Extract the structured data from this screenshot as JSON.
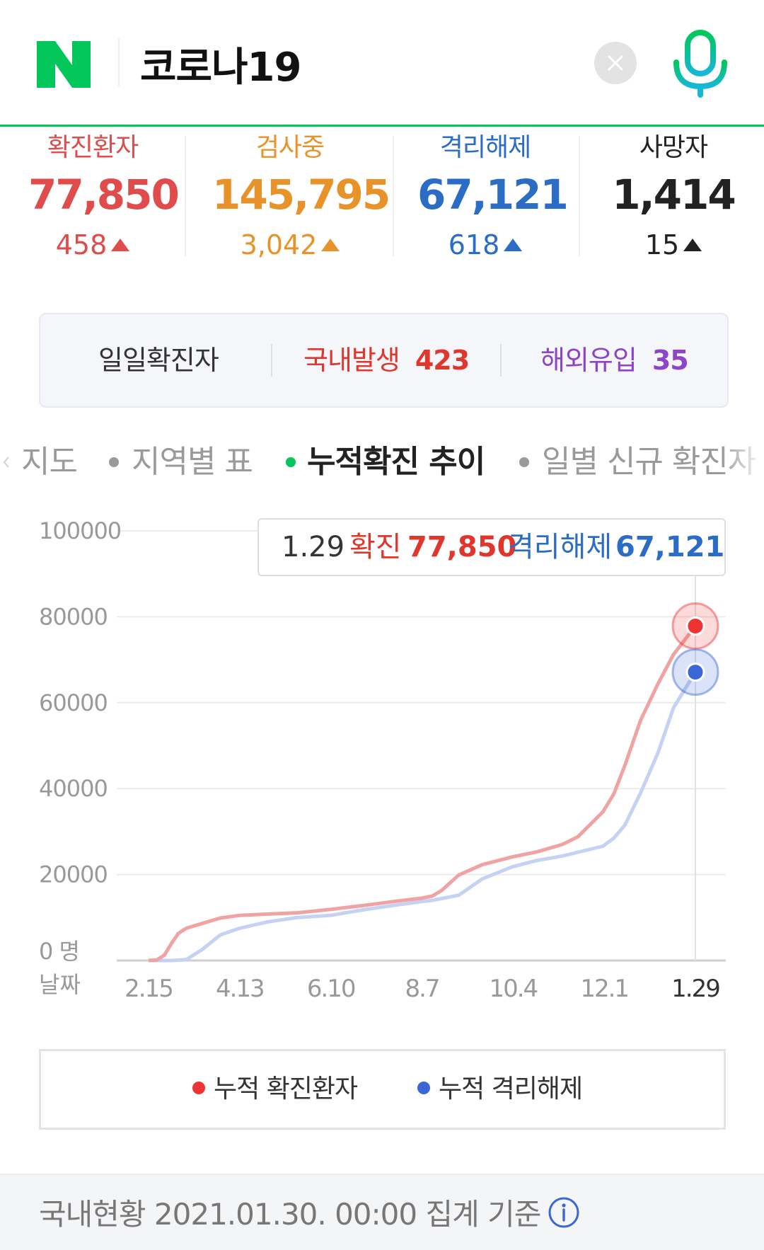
{
  "header": {
    "logo_letter": "N",
    "query": "코로나19",
    "clear_label": "×",
    "brand_color": "#03c75a"
  },
  "stats": [
    {
      "label": "확진환자",
      "value": "77,850",
      "delta": "458",
      "color": "#e04b4b"
    },
    {
      "label": "검사중",
      "value": "145,795",
      "delta": "3,042",
      "color": "#e8932a"
    },
    {
      "label": "격리해제",
      "value": "67,121",
      "delta": "618",
      "color": "#2b6cc4"
    },
    {
      "label": "사망자",
      "value": "1,414",
      "delta": "15",
      "color": "#222222"
    }
  ],
  "daily": {
    "title": "일일확진자",
    "domestic_label": "국내발생",
    "domestic_value": "423",
    "overseas_label": "해외유입",
    "overseas_value": "35"
  },
  "tabs": [
    {
      "label": "지도",
      "active": false
    },
    {
      "label": "지역별 표",
      "active": false
    },
    {
      "label": "누적확진 추이",
      "active": true
    },
    {
      "label": "일별 신규 확진자",
      "active": false
    }
  ],
  "tooltip": {
    "date": "1.29",
    "confirmed_label": "확진",
    "confirmed_value": "77,850",
    "released_label": "격리해제",
    "released_value": "67,121"
  },
  "chart_data": {
    "type": "line",
    "y_ticks": [
      "100000",
      "80000",
      "60000",
      "40000",
      "20000",
      "0 명"
    ],
    "ylim": [
      0,
      100000
    ],
    "x_axis_label": "날짜",
    "x_ticks": [
      "2.15",
      "4.13",
      "6.10",
      "8.7",
      "10.4",
      "12.1",
      "1.29"
    ],
    "grid": true,
    "series": [
      {
        "name": "누적 확진환자",
        "color": "#f0a3a3",
        "marker_color": "#ee3333",
        "points": [
          [
            "2.15",
            30
          ],
          [
            "2.20",
            100
          ],
          [
            "2.25",
            1200
          ],
          [
            "3.1",
            4200
          ],
          [
            "3.5",
            6300
          ],
          [
            "3.10",
            7500
          ],
          [
            "3.20",
            8600
          ],
          [
            "4.1",
            9900
          ],
          [
            "4.13",
            10500
          ],
          [
            "5.1",
            10800
          ],
          [
            "5.20",
            11100
          ],
          [
            "6.10",
            11900
          ],
          [
            "7.1",
            12800
          ],
          [
            "7.20",
            13700
          ],
          [
            "8.7",
            14500
          ],
          [
            "8.14",
            15000
          ],
          [
            "8.20",
            16300
          ],
          [
            "8.31",
            19900
          ],
          [
            "9.15",
            22300
          ],
          [
            "10.4",
            24100
          ],
          [
            "10.20",
            25300
          ],
          [
            "11.5",
            27000
          ],
          [
            "11.15",
            28800
          ],
          [
            "12.1",
            34600
          ],
          [
            "12.8",
            38800
          ],
          [
            "12.15",
            45400
          ],
          [
            "12.25",
            55900
          ],
          [
            "1.5",
            64300
          ],
          [
            "1.15",
            71200
          ],
          [
            "1.29",
            77850
          ]
        ]
      },
      {
        "name": "누적 격리해제",
        "color": "#c5d2f3",
        "marker_color": "#3a66d6",
        "points": [
          [
            "2.15",
            0
          ],
          [
            "3.1",
            0
          ],
          [
            "3.10",
            200
          ],
          [
            "3.20",
            2500
          ],
          [
            "4.1",
            6000
          ],
          [
            "4.13",
            7500
          ],
          [
            "5.1",
            9000
          ],
          [
            "5.20",
            10000
          ],
          [
            "6.10",
            10500
          ],
          [
            "7.1",
            11800
          ],
          [
            "7.20",
            12800
          ],
          [
            "8.7",
            13700
          ],
          [
            "8.14",
            14000
          ],
          [
            "8.31",
            15200
          ],
          [
            "9.15",
            19000
          ],
          [
            "10.4",
            21800
          ],
          [
            "10.20",
            23300
          ],
          [
            "11.5",
            24300
          ],
          [
            "11.15",
            25200
          ],
          [
            "12.1",
            26600
          ],
          [
            "12.8",
            28500
          ],
          [
            "12.15",
            31500
          ],
          [
            "12.25",
            39000
          ],
          [
            "1.5",
            48200
          ],
          [
            "1.15",
            58800
          ],
          [
            "1.29",
            67121
          ]
        ]
      }
    ]
  },
  "legend": {
    "confirmed_label": "누적 확진환자",
    "released_label": "누적 격리해제",
    "confirmed_color": "#ee3333",
    "released_color": "#3a66d6"
  },
  "footer": {
    "text": "국내현황 2021.01.30. 00:00 집계 기준",
    "icon": "info-icon"
  }
}
